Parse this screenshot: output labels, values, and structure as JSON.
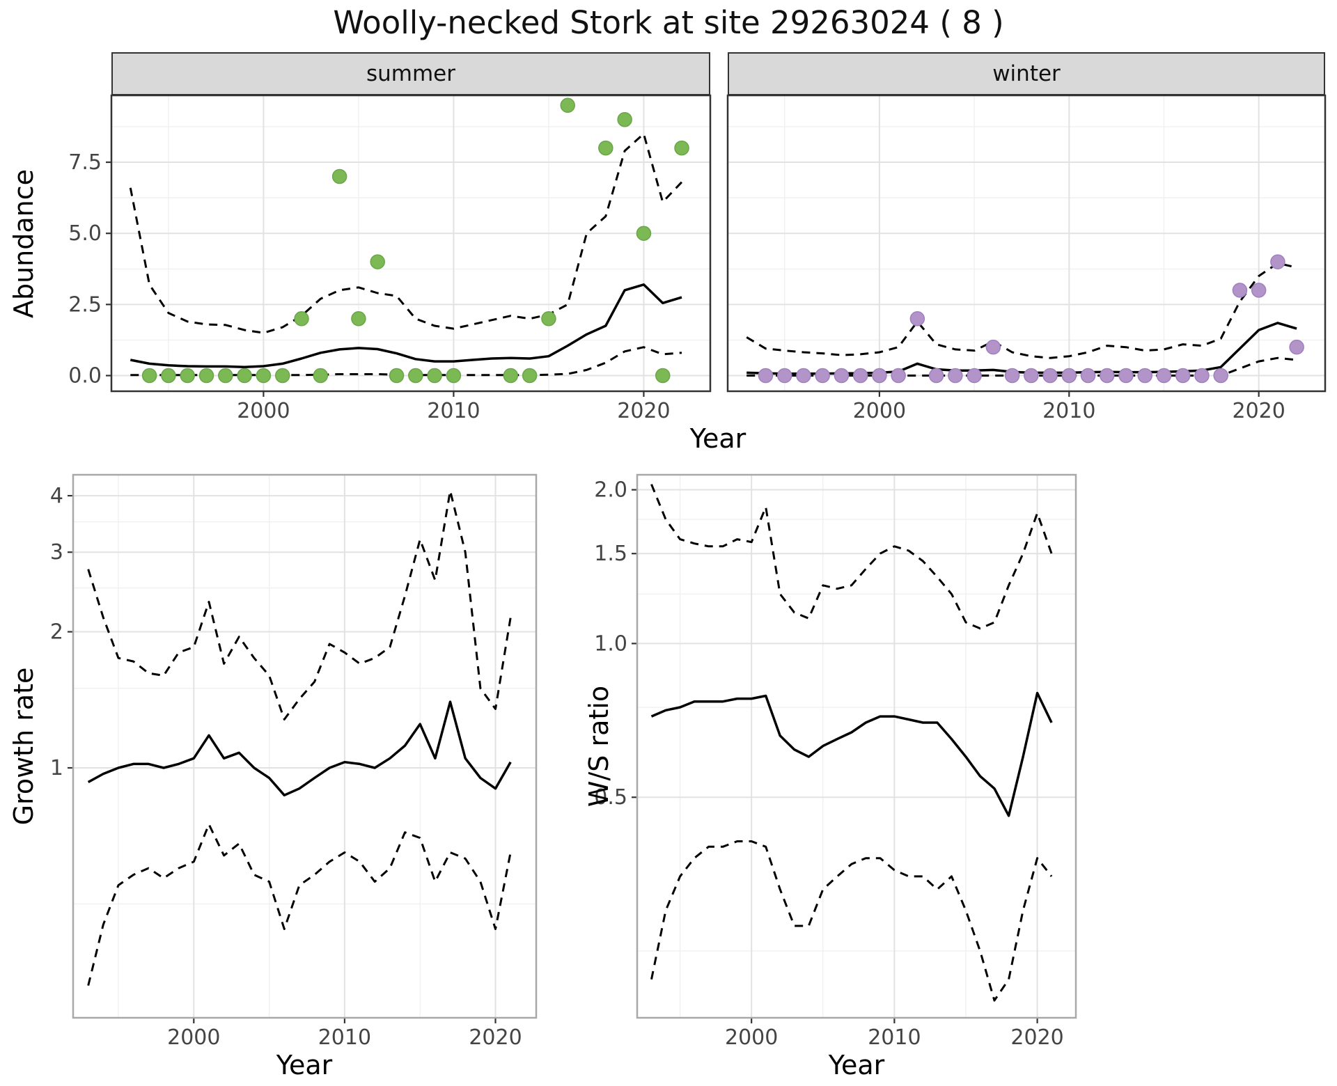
{
  "title": "Woolly-necked Stork at site 29263024 ( 8 )",
  "chart_data": [
    {
      "id": "abundance-summer",
      "type": "line",
      "subtype": "model-fit-with-dashed-ci-and-observed-points",
      "facet_label": "summer",
      "ylabel": "Abundance",
      "xlabel": "Year",
      "yscale": "linear",
      "xlim": [
        1992,
        2023.5
      ],
      "ylim": [
        -0.55,
        9.85
      ],
      "xticks": {
        "values": [
          2000,
          2010,
          2020
        ],
        "labels": [
          "2000",
          "2010",
          "2020"
        ]
      },
      "xminor": [
        1995,
        2005,
        2015
      ],
      "yticks": {
        "values": [
          0,
          2.5,
          5,
          7.5
        ],
        "labels": [
          "0.0",
          "2.5",
          "5.0",
          "7.5"
        ]
      },
      "yminor": [
        1.25,
        3.75,
        6.25,
        8.75
      ],
      "point_color": "#7cb854",
      "point_stroke": "#69a647",
      "years": [
        1993,
        1994,
        1995,
        1996,
        1997,
        1998,
        1999,
        2000,
        2001,
        2002,
        2003,
        2004,
        2005,
        2006,
        2007,
        2008,
        2009,
        2010,
        2011,
        2012,
        2013,
        2014,
        2015,
        2016,
        2017,
        2018,
        2019,
        2020,
        2021,
        2022
      ],
      "fit": [
        0.55,
        0.42,
        0.36,
        0.33,
        0.32,
        0.32,
        0.3,
        0.33,
        0.42,
        0.6,
        0.8,
        0.92,
        0.97,
        0.93,
        0.78,
        0.58,
        0.5,
        0.5,
        0.55,
        0.6,
        0.62,
        0.6,
        0.68,
        1.05,
        1.45,
        1.75,
        3.0,
        3.2,
        2.55,
        2.75
      ],
      "upper_ci": [
        6.6,
        3.2,
        2.2,
        1.9,
        1.8,
        1.78,
        1.6,
        1.5,
        1.7,
        2.1,
        2.7,
        3.0,
        3.1,
        2.9,
        2.8,
        2.0,
        1.75,
        1.65,
        1.8,
        1.95,
        2.1,
        2.0,
        2.15,
        2.5,
        5.0,
        5.6,
        7.9,
        8.5,
        6.1,
        6.8
      ],
      "lower_ci": [
        0.02,
        0.02,
        0.02,
        0.02,
        0.02,
        0.02,
        0.02,
        0.02,
        0.02,
        0.02,
        0.03,
        0.05,
        0.05,
        0.05,
        0.03,
        0.02,
        0.02,
        0.02,
        0.02,
        0.02,
        0.02,
        0.02,
        0.03,
        0.06,
        0.2,
        0.45,
        0.85,
        1.0,
        0.75,
        0.8
      ],
      "points": {
        "x": [
          1994,
          1995,
          1996,
          1997,
          1998,
          1999,
          2000,
          2001,
          2002,
          2003,
          2004,
          2005,
          2006,
          2007,
          2008,
          2009,
          2010,
          2013,
          2014,
          2015,
          2016,
          2018,
          2019,
          2020,
          2021,
          2022
        ],
        "y": [
          0,
          0,
          0,
          0,
          0,
          0,
          0,
          0,
          2,
          0,
          7,
          2,
          4,
          0,
          0,
          0,
          0,
          0,
          0,
          2,
          9.5,
          8,
          9,
          5,
          0,
          8
        ]
      }
    },
    {
      "id": "abundance-winter",
      "type": "line",
      "subtype": "model-fit-with-dashed-ci-and-observed-points",
      "facet_label": "winter",
      "ylabel": "Abundance",
      "xlabel": "Year",
      "yscale": "linear",
      "xlim": [
        1992,
        2023.5
      ],
      "ylim": [
        -0.55,
        9.85
      ],
      "xticks": {
        "values": [
          2000,
          2010,
          2020
        ],
        "labels": [
          "2000",
          "2010",
          "2020"
        ]
      },
      "xminor": [
        1995,
        2005,
        2015
      ],
      "yticks": {
        "values": [
          0,
          2.5,
          5,
          7.5
        ],
        "labels": [
          "0.0",
          "2.5",
          "5.0",
          "7.5"
        ]
      },
      "yminor": [
        1.25,
        3.75,
        6.25,
        8.75
      ],
      "point_color": "#b394c9",
      "point_stroke": "#9f7fc0",
      "years": [
        1993,
        1994,
        1995,
        1996,
        1997,
        1998,
        1999,
        2000,
        2001,
        2002,
        2003,
        2004,
        2005,
        2006,
        2007,
        2008,
        2009,
        2010,
        2011,
        2012,
        2013,
        2014,
        2015,
        2016,
        2017,
        2018,
        2019,
        2020,
        2021,
        2022
      ],
      "fit": [
        0.1,
        0.08,
        0.07,
        0.07,
        0.07,
        0.08,
        0.08,
        0.1,
        0.14,
        0.42,
        0.22,
        0.18,
        0.18,
        0.2,
        0.13,
        0.1,
        0.1,
        0.1,
        0.12,
        0.13,
        0.12,
        0.12,
        0.13,
        0.15,
        0.18,
        0.3,
        0.95,
        1.6,
        1.85,
        1.65
      ],
      "upper_ci": [
        1.35,
        0.95,
        0.88,
        0.82,
        0.78,
        0.72,
        0.75,
        0.82,
        1.0,
        1.9,
        1.1,
        0.92,
        0.88,
        1.2,
        0.82,
        0.68,
        0.62,
        0.68,
        0.82,
        1.05,
        1.0,
        0.88,
        0.92,
        1.1,
        1.05,
        1.3,
        2.6,
        3.5,
        3.95,
        3.8
      ],
      "lower_ci": [
        0,
        0,
        0,
        0,
        0,
        0,
        0,
        0,
        0,
        0,
        0,
        0,
        0,
        0,
        0,
        0,
        0,
        0,
        0,
        0,
        0,
        0,
        0,
        0,
        0,
        0,
        0.25,
        0.5,
        0.62,
        0.55
      ],
      "points": {
        "x": [
          1994,
          1995,
          1996,
          1997,
          1998,
          1999,
          2000,
          2001,
          2002,
          2003,
          2004,
          2005,
          2006,
          2007,
          2008,
          2009,
          2010,
          2011,
          2012,
          2013,
          2014,
          2015,
          2016,
          2017,
          2018,
          2019,
          2020,
          2021,
          2022
        ],
        "y": [
          0,
          0,
          0,
          0,
          0,
          0,
          0,
          0,
          2,
          0,
          0,
          0,
          1,
          0,
          0,
          0,
          0,
          0,
          0,
          0,
          0,
          0,
          0,
          0,
          0,
          3,
          3,
          4,
          1
        ]
      }
    },
    {
      "id": "growth-rate",
      "type": "line",
      "subtype": "model-fit-with-dashed-ci",
      "facet_label": "",
      "ylabel": "Growth rate",
      "xlabel": "Year",
      "yscale": "log10",
      "xlim": [
        1992,
        2022.7
      ],
      "ylim": [
        0.28,
        4.45
      ],
      "xticks": {
        "values": [
          2000,
          2010,
          2020
        ],
        "labels": [
          "2000",
          "2010",
          "2020"
        ]
      },
      "xminor": [
        1995,
        2005,
        2015
      ],
      "yticks": {
        "values": [
          1,
          2,
          3,
          4
        ],
        "labels": [
          "1",
          "2",
          "3",
          "4"
        ]
      },
      "yminor": [
        0.5,
        1.5,
        2.5,
        3.5
      ],
      "years": [
        1993,
        1994,
        1995,
        1996,
        1997,
        1998,
        1999,
        2000,
        2001,
        2002,
        2003,
        2004,
        2005,
        2006,
        2007,
        2008,
        2009,
        2010,
        2011,
        2012,
        2013,
        2014,
        2015,
        2016,
        2017,
        2018,
        2019,
        2020,
        2021
      ],
      "fit": [
        0.93,
        0.97,
        1.0,
        1.02,
        1.02,
        1.0,
        1.02,
        1.05,
        1.18,
        1.05,
        1.08,
        1.0,
        0.95,
        0.87,
        0.9,
        0.95,
        1.0,
        1.03,
        1.02,
        1.0,
        1.05,
        1.12,
        1.25,
        1.05,
        1.4,
        1.05,
        0.95,
        0.9,
        1.03
      ],
      "upper_ci": [
        2.75,
        2.15,
        1.75,
        1.72,
        1.62,
        1.6,
        1.8,
        1.85,
        2.33,
        1.7,
        1.95,
        1.75,
        1.6,
        1.28,
        1.42,
        1.55,
        1.88,
        1.8,
        1.7,
        1.75,
        1.85,
        2.4,
        3.2,
        2.6,
        4.1,
        3.0,
        1.5,
        1.35,
        2.15
      ],
      "lower_ci": [
        0.33,
        0.45,
        0.55,
        0.58,
        0.6,
        0.57,
        0.6,
        0.62,
        0.75,
        0.64,
        0.68,
        0.58,
        0.56,
        0.44,
        0.55,
        0.58,
        0.62,
        0.65,
        0.62,
        0.56,
        0.6,
        0.72,
        0.7,
        0.56,
        0.65,
        0.63,
        0.56,
        0.44,
        0.65
      ]
    },
    {
      "id": "ws-ratio",
      "type": "line",
      "subtype": "model-fit-with-dashed-ci",
      "facet_label": "",
      "ylabel": "W/S ratio",
      "xlabel": "Year",
      "yscale": "log10",
      "xlim": [
        1992,
        2022.7
      ],
      "ylim": [
        0.185,
        2.14
      ],
      "xticks": {
        "values": [
          2000,
          2010,
          2020
        ],
        "labels": [
          "2000",
          "2010",
          "2020"
        ]
      },
      "xminor": [
        1995,
        2005,
        2015
      ],
      "yticks": {
        "values": [
          0.5,
          1.0,
          1.5,
          2.0
        ],
        "labels": [
          "0.5",
          "1.0",
          "1.5",
          "2.0"
        ]
      },
      "yminor": [
        0.25,
        0.75,
        1.25,
        1.75
      ],
      "years": [
        1993,
        1994,
        1995,
        1996,
        1997,
        1998,
        1999,
        2000,
        2001,
        2002,
        2003,
        2004,
        2005,
        2006,
        2007,
        2008,
        2009,
        2010,
        2011,
        2012,
        2013,
        2014,
        2015,
        2016,
        2017,
        2018,
        2019,
        2020,
        2021
      ],
      "fit": [
        0.72,
        0.74,
        0.75,
        0.77,
        0.77,
        0.77,
        0.78,
        0.78,
        0.79,
        0.66,
        0.62,
        0.6,
        0.63,
        0.65,
        0.67,
        0.7,
        0.72,
        0.72,
        0.71,
        0.7,
        0.7,
        0.65,
        0.6,
        0.55,
        0.52,
        0.46,
        0.6,
        0.8,
        0.7
      ],
      "upper_ci": [
        2.05,
        1.75,
        1.6,
        1.57,
        1.55,
        1.55,
        1.6,
        1.58,
        1.85,
        1.25,
        1.15,
        1.12,
        1.3,
        1.28,
        1.3,
        1.4,
        1.5,
        1.55,
        1.52,
        1.45,
        1.35,
        1.25,
        1.1,
        1.07,
        1.1,
        1.3,
        1.5,
        1.8,
        1.5
      ],
      "lower_ci": [
        0.22,
        0.3,
        0.35,
        0.38,
        0.4,
        0.4,
        0.41,
        0.41,
        0.4,
        0.33,
        0.28,
        0.28,
        0.33,
        0.35,
        0.37,
        0.38,
        0.38,
        0.36,
        0.35,
        0.35,
        0.33,
        0.35,
        0.3,
        0.25,
        0.2,
        0.22,
        0.3,
        0.38,
        0.35
      ]
    }
  ],
  "styles": {
    "fit_line": "solid black",
    "ci_lines": "dashed black",
    "strip_background": "#d9d9d9",
    "grid_major": "#e2e2e2",
    "grid_minor": "#f0f0f0"
  }
}
